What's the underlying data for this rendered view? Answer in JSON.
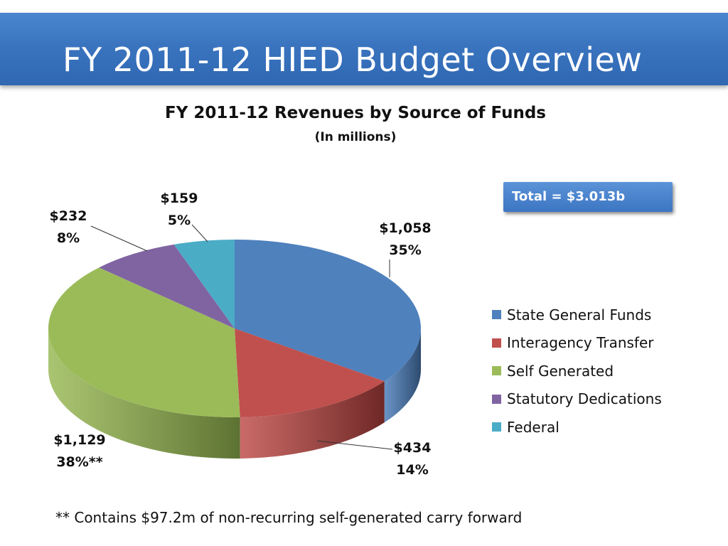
{
  "slide": {
    "title": "FY 2011-12 HIED Budget Overview"
  },
  "total_label": "Total = $3.013b",
  "footnote": "** Contains $97.2m of non-recurring self-generated carry forward",
  "chart_data": {
    "type": "pie",
    "title": "FY 2011-12 Revenues by Source of Funds",
    "subtitle": "(In millions)",
    "legend_position": "right",
    "slices": [
      {
        "name": "State General Funds",
        "value": 1058,
        "amount_label": "$1,058",
        "percent_label": "35%",
        "color": "#4f81bd",
        "side": "#2d4a6e"
      },
      {
        "name": "Interagency Transfer",
        "value": 434,
        "amount_label": "$434",
        "percent_label": "14%",
        "color": "#c0504d",
        "side": "#6e2826"
      },
      {
        "name": "Self Generated",
        "value": 1129,
        "amount_label": "$1,129",
        "percent_label": "38%**",
        "color": "#9bbb59",
        "side": "#5d7232"
      },
      {
        "name": "Statutory Dedications",
        "value": 232,
        "amount_label": "$232",
        "percent_label": "8%",
        "color": "#8064a2",
        "side": "#4c3b61"
      },
      {
        "name": "Federal",
        "value": 159,
        "amount_label": "$159",
        "percent_label": "5%",
        "color": "#4bacc6",
        "side": "#2c6777"
      }
    ]
  }
}
